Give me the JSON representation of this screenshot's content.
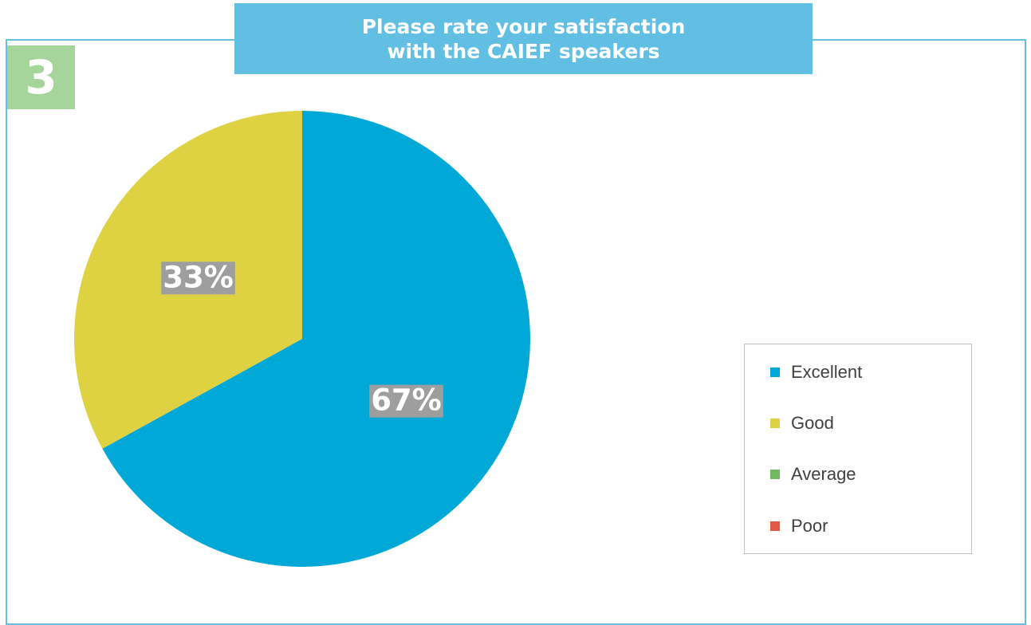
{
  "badge": {
    "number": "3"
  },
  "chart_data": {
    "type": "pie",
    "title_lines": [
      "Please rate your satisfaction",
      "with the CAIEF speakers"
    ],
    "categories": [
      "Excellent",
      "Good",
      "Average",
      "Poor"
    ],
    "values": [
      67,
      33,
      0,
      0
    ],
    "labels": [
      "67%",
      "33%",
      "",
      ""
    ],
    "colors": [
      "#00a8d8",
      "#ded243",
      "#72b95e",
      "#e05a44"
    ],
    "legend_position": "right"
  }
}
